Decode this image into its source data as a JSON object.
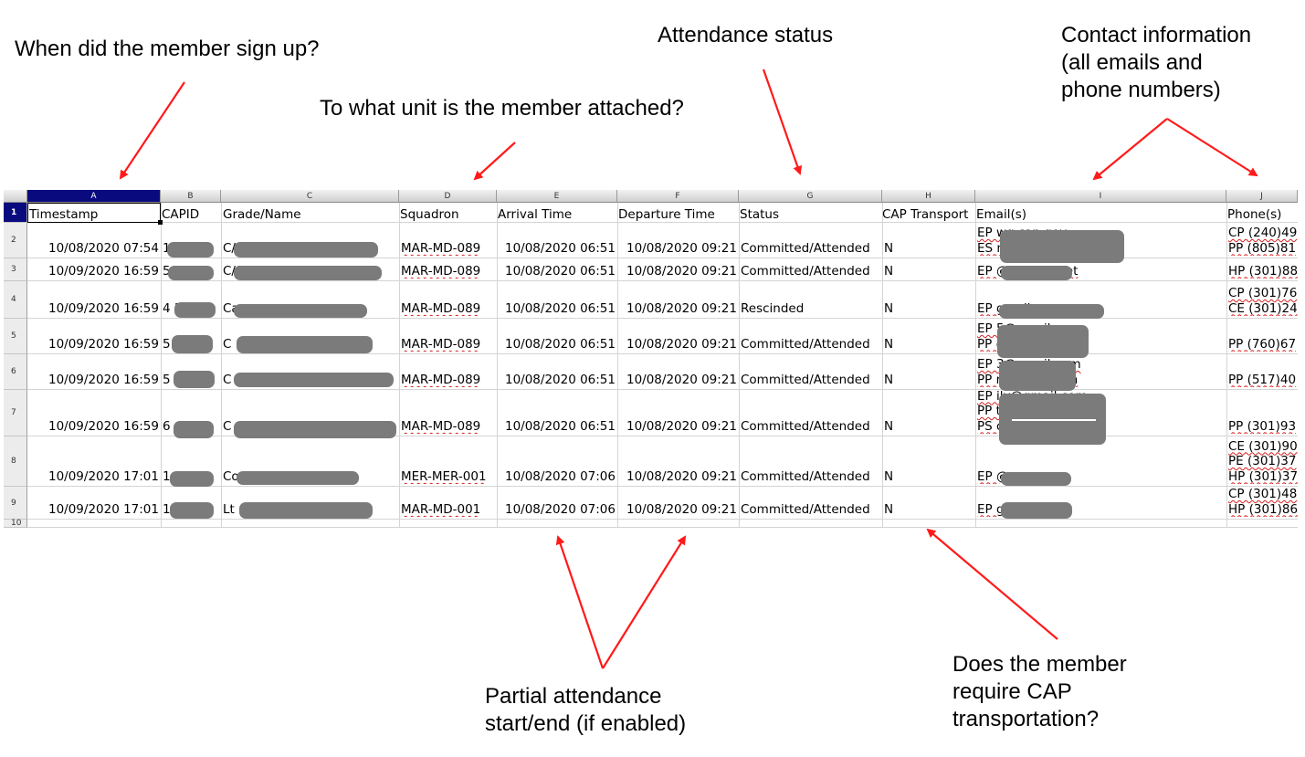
{
  "callouts": {
    "signup": "When did the member sign up?",
    "unit": "To what unit is the member  attached?",
    "attendance": "Attendance status",
    "contact": "Contact information\n(all emails and\nphone numbers)",
    "partial": "Partial attendance\nstart/end (if enabled)",
    "transport": "Does the member\nrequire CAP\ntransportation?"
  },
  "sheet": {
    "column_letters": [
      "A",
      "B",
      "C",
      "D",
      "E",
      "F",
      "G",
      "H",
      "I",
      "J"
    ],
    "row_numbers": [
      "1",
      "2",
      "3",
      "4",
      "5",
      "6",
      "7",
      "8",
      "9",
      "10"
    ],
    "headers": {
      "timestamp": "Timestamp",
      "capid": "CAPID",
      "grade_name": "Grade/Name",
      "squadron": "Squadron",
      "arrival": "Arrival Time",
      "departure": "Departure Time",
      "status": "Status",
      "transport": "CAP Transport",
      "emails": "Email(s)",
      "phones": "Phone(s)"
    },
    "rows": [
      {
        "timestamp": "10/08/2020 07:54",
        "capid": "1",
        "name": "C/",
        "squadron": "MAR-MD-089",
        "arrival": "10/08/2020 06:51",
        "departure": "10/08/2020 09:21",
        "status": "Committed/Attended",
        "transport": "N",
        "emails": [
          "EP                              wg.cap.gov",
          "ES                              nail.com"
        ],
        "phones": [
          "CP (240)49",
          "PP (805)81"
        ]
      },
      {
        "timestamp": "10/09/2020 16:59",
        "capid": "5",
        "name": "C/S",
        "squadron": "MAR-MD-089",
        "arrival": "10/08/2020 06:51",
        "departure": "10/08/2020 09:21",
        "status": "Committed/Attended",
        "transport": "N",
        "emails": [
          "EP                    @verizon.net"
        ],
        "phones": [
          "HP (301)88"
        ]
      },
      {
        "timestamp": "10/09/2020 16:59",
        "capid": "4        5",
        "name": "Ca",
        "squadron": "MAR-MD-089",
        "arrival": "10/08/2020 06:51",
        "departure": "10/08/2020 09:21",
        "status": "Rescinded",
        "transport": "N",
        "emails": [
          "EP                                    gmail.com"
        ],
        "phones": [
          "CP (301)76",
          "CE (301)24"
        ]
      },
      {
        "timestamp": "10/09/2020 16:59",
        "capid": "5",
        "name": "C",
        "squadron": "MAR-MD-089",
        "arrival": "10/08/2020 06:51",
        "departure": "10/08/2020 09:21",
        "status": "Committed/Attended",
        "transport": "N",
        "emails": [
          "EP                              5@gmail.com",
          "PP                              @yahoo.com"
        ],
        "phones": [
          "PP (760)67"
        ]
      },
      {
        "timestamp": "10/09/2020 16:59",
        "capid": "5",
        "name": "C",
        "squadron": "MAR-MD-089",
        "arrival": "10/08/2020 06:51",
        "departure": "10/08/2020 09:21",
        "status": "Committed/Attended",
        "transport": "N",
        "emails": [
          "EP                            3@gmail.com",
          "PP                            r@gmail.com"
        ],
        "phones": [
          "PP (517)40"
        ]
      },
      {
        "timestamp": "10/09/2020 16:59",
        "capid": "6",
        "name": "C",
        "squadron": "MAR-MD-089",
        "arrival": "10/08/2020 06:51",
        "departure": "10/08/2020 09:21",
        "status": "Committed/Attended",
        "transport": "N",
        "emails": [
          "EP                                ily@gmail.com",
          "PP                                ter94@gmail.com",
          "PS                                comcast.net"
        ],
        "phones": [
          "PP (301)93"
        ]
      },
      {
        "timestamp": "10/09/2020 17:01",
        "capid": "1",
        "name": "Co",
        "squadron": "MER-MER-001",
        "arrival": "10/08/2020 07:06",
        "departure": "10/08/2020 09:21",
        "status": "Committed/Attended",
        "transport": "N",
        "emails": [
          "EP                            @msn.com"
        ],
        "phones": [
          "CE (301)90",
          "PE (301)37",
          "HP (301)37"
        ]
      },
      {
        "timestamp": "10/09/2020 17:01",
        "capid": "1",
        "name": "Lt",
        "squadron": "MAR-MD-001",
        "arrival": "10/08/2020 07:06",
        "departure": "10/08/2020 09:21",
        "status": "Committed/Attended",
        "transport": "N",
        "emails": [
          "EP                            gmail.com"
        ],
        "phones": [
          "CP (301)48",
          "HP (301)86"
        ]
      }
    ]
  },
  "colors": {
    "arrow": "#ff1a1a",
    "redaction": "#7b7b7b",
    "selected_header": "#0a0a7f",
    "spellcheck": "#d42020"
  }
}
